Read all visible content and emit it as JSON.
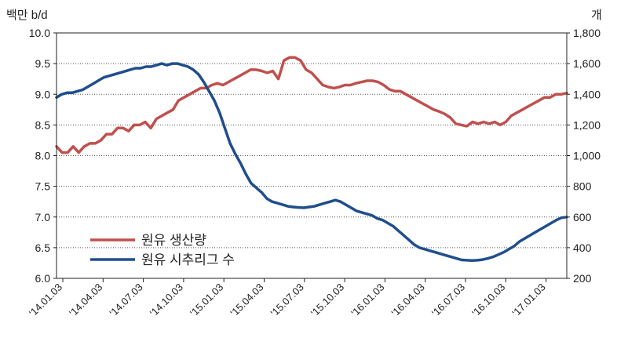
{
  "chart_data": {
    "type": "line",
    "left_axis_label": "백만 b/d",
    "right_axis_label": "개",
    "y_left": {
      "min": 6.0,
      "max": 10.0,
      "ticks": [
        "6.0",
        "6.5",
        "7.0",
        "7.5",
        "8.0",
        "8.5",
        "9.0",
        "9.5",
        "10.0"
      ]
    },
    "y_right": {
      "min": 200,
      "max": 1800,
      "ticks": [
        "200",
        "400",
        "600",
        "800",
        "1,000",
        "1,200",
        "1,400",
        "1,600",
        "1,800"
      ]
    },
    "x_ticks": [
      "'14.01.03",
      "'14.04.03",
      "'14.07.03",
      "'14.10.03",
      "'15.01.03",
      "'15.04.03",
      "'15.07.03",
      "'15.10.03",
      "'16.01.03",
      "'16.04.03",
      "'16.07.03",
      "'16.10.03",
      "'17.01.03"
    ],
    "grid": "horizontal-dotted",
    "legend_position": "bottom-left",
    "colors": {
      "production": "#c0504d",
      "rigs": "#1f4e8c"
    },
    "series": [
      {
        "name": "원유 생산량",
        "axis": "left",
        "points": [
          [
            0,
            8.15
          ],
          [
            1,
            8.05
          ],
          [
            2,
            8.05
          ],
          [
            3,
            8.15
          ],
          [
            4,
            8.05
          ],
          [
            5,
            8.15
          ],
          [
            6,
            8.2
          ],
          [
            7,
            8.2
          ],
          [
            8,
            8.25
          ],
          [
            9,
            8.35
          ],
          [
            10,
            8.35
          ],
          [
            11,
            8.45
          ],
          [
            12,
            8.45
          ],
          [
            13,
            8.4
          ],
          [
            14,
            8.5
          ],
          [
            15,
            8.5
          ],
          [
            16,
            8.55
          ],
          [
            17,
            8.45
          ],
          [
            18,
            8.6
          ],
          [
            19,
            8.65
          ],
          [
            20,
            8.7
          ],
          [
            21,
            8.75
          ],
          [
            22,
            8.9
          ],
          [
            23,
            8.95
          ],
          [
            24,
            9.0
          ],
          [
            25,
            9.05
          ],
          [
            26,
            9.1
          ],
          [
            27,
            9.1
          ],
          [
            28,
            9.15
          ],
          [
            29,
            9.18
          ],
          [
            30,
            9.15
          ],
          [
            31,
            9.2
          ],
          [
            32,
            9.25
          ],
          [
            33,
            9.3
          ],
          [
            34,
            9.35
          ],
          [
            35,
            9.4
          ],
          [
            36,
            9.4
          ],
          [
            37,
            9.38
          ],
          [
            38,
            9.35
          ],
          [
            39,
            9.38
          ],
          [
            40,
            9.25
          ],
          [
            41,
            9.55
          ],
          [
            42,
            9.6
          ],
          [
            43,
            9.6
          ],
          [
            44,
            9.55
          ],
          [
            45,
            9.4
          ],
          [
            46,
            9.35
          ],
          [
            47,
            9.25
          ],
          [
            48,
            9.15
          ],
          [
            49,
            9.12
          ],
          [
            50,
            9.1
          ],
          [
            51,
            9.12
          ],
          [
            52,
            9.15
          ],
          [
            53,
            9.15
          ],
          [
            54,
            9.18
          ],
          [
            55,
            9.2
          ],
          [
            56,
            9.22
          ],
          [
            57,
            9.22
          ],
          [
            58,
            9.2
          ],
          [
            59,
            9.15
          ],
          [
            60,
            9.08
          ],
          [
            61,
            9.05
          ],
          [
            62,
            9.05
          ],
          [
            63,
            9.0
          ],
          [
            64,
            8.95
          ],
          [
            65,
            8.9
          ],
          [
            66,
            8.85
          ],
          [
            67,
            8.8
          ],
          [
            68,
            8.75
          ],
          [
            69,
            8.72
          ],
          [
            70,
            8.68
          ],
          [
            71,
            8.62
          ],
          [
            72,
            8.52
          ],
          [
            73,
            8.5
          ],
          [
            74,
            8.48
          ],
          [
            75,
            8.55
          ],
          [
            76,
            8.52
          ],
          [
            77,
            8.55
          ],
          [
            78,
            8.52
          ],
          [
            79,
            8.55
          ],
          [
            80,
            8.5
          ],
          [
            81,
            8.55
          ],
          [
            82,
            8.65
          ],
          [
            83,
            8.7
          ],
          [
            84,
            8.75
          ],
          [
            85,
            8.8
          ],
          [
            86,
            8.85
          ],
          [
            87,
            8.9
          ],
          [
            88,
            8.95
          ],
          [
            89,
            8.95
          ],
          [
            90,
            9.0
          ],
          [
            91,
            9.0
          ],
          [
            92,
            9.02
          ]
        ]
      },
      {
        "name": "원유 시추리그 수",
        "axis": "right",
        "points": [
          [
            0,
            1380
          ],
          [
            1,
            1400
          ],
          [
            2,
            1410
          ],
          [
            3,
            1410
          ],
          [
            4,
            1420
          ],
          [
            5,
            1430
          ],
          [
            6,
            1450
          ],
          [
            7,
            1470
          ],
          [
            8,
            1490
          ],
          [
            9,
            1510
          ],
          [
            10,
            1520
          ],
          [
            11,
            1530
          ],
          [
            12,
            1540
          ],
          [
            13,
            1550
          ],
          [
            14,
            1560
          ],
          [
            15,
            1570
          ],
          [
            16,
            1570
          ],
          [
            17,
            1580
          ],
          [
            18,
            1580
          ],
          [
            19,
            1590
          ],
          [
            20,
            1600
          ],
          [
            21,
            1590
          ],
          [
            22,
            1600
          ],
          [
            23,
            1600
          ],
          [
            24,
            1590
          ],
          [
            25,
            1580
          ],
          [
            26,
            1560
          ],
          [
            27,
            1530
          ],
          [
            28,
            1480
          ],
          [
            29,
            1420
          ],
          [
            30,
            1360
          ],
          [
            31,
            1280
          ],
          [
            32,
            1180
          ],
          [
            33,
            1080
          ],
          [
            34,
            1010
          ],
          [
            35,
            950
          ],
          [
            36,
            880
          ],
          [
            37,
            820
          ],
          [
            38,
            790
          ],
          [
            39,
            760
          ],
          [
            40,
            720
          ],
          [
            41,
            700
          ],
          [
            42,
            690
          ],
          [
            43,
            680
          ],
          [
            44,
            670
          ],
          [
            45,
            665
          ],
          [
            46,
            662
          ],
          [
            47,
            660
          ],
          [
            48,
            665
          ],
          [
            49,
            670
          ],
          [
            50,
            680
          ],
          [
            51,
            690
          ],
          [
            52,
            700
          ],
          [
            53,
            710
          ],
          [
            54,
            700
          ],
          [
            55,
            680
          ],
          [
            56,
            660
          ],
          [
            57,
            640
          ],
          [
            58,
            630
          ],
          [
            59,
            620
          ],
          [
            60,
            610
          ],
          [
            61,
            590
          ],
          [
            62,
            580
          ],
          [
            63,
            560
          ],
          [
            64,
            540
          ],
          [
            65,
            510
          ],
          [
            66,
            480
          ],
          [
            67,
            450
          ],
          [
            68,
            420
          ],
          [
            69,
            400
          ],
          [
            70,
            390
          ],
          [
            71,
            380
          ],
          [
            72,
            370
          ],
          [
            73,
            360
          ],
          [
            74,
            350
          ],
          [
            75,
            340
          ],
          [
            76,
            330
          ],
          [
            77,
            320
          ],
          [
            78,
            318
          ],
          [
            79,
            316
          ],
          [
            80,
            318
          ],
          [
            81,
            322
          ],
          [
            82,
            330
          ],
          [
            83,
            340
          ],
          [
            84,
            355
          ],
          [
            85,
            370
          ],
          [
            86,
            390
          ],
          [
            87,
            410
          ],
          [
            88,
            440
          ],
          [
            89,
            460
          ],
          [
            90,
            480
          ],
          [
            91,
            500
          ],
          [
            92,
            520
          ],
          [
            93,
            540
          ],
          [
            94,
            560
          ],
          [
            95,
            580
          ],
          [
            96,
            595
          ],
          [
            97,
            600
          ]
        ]
      }
    ]
  }
}
